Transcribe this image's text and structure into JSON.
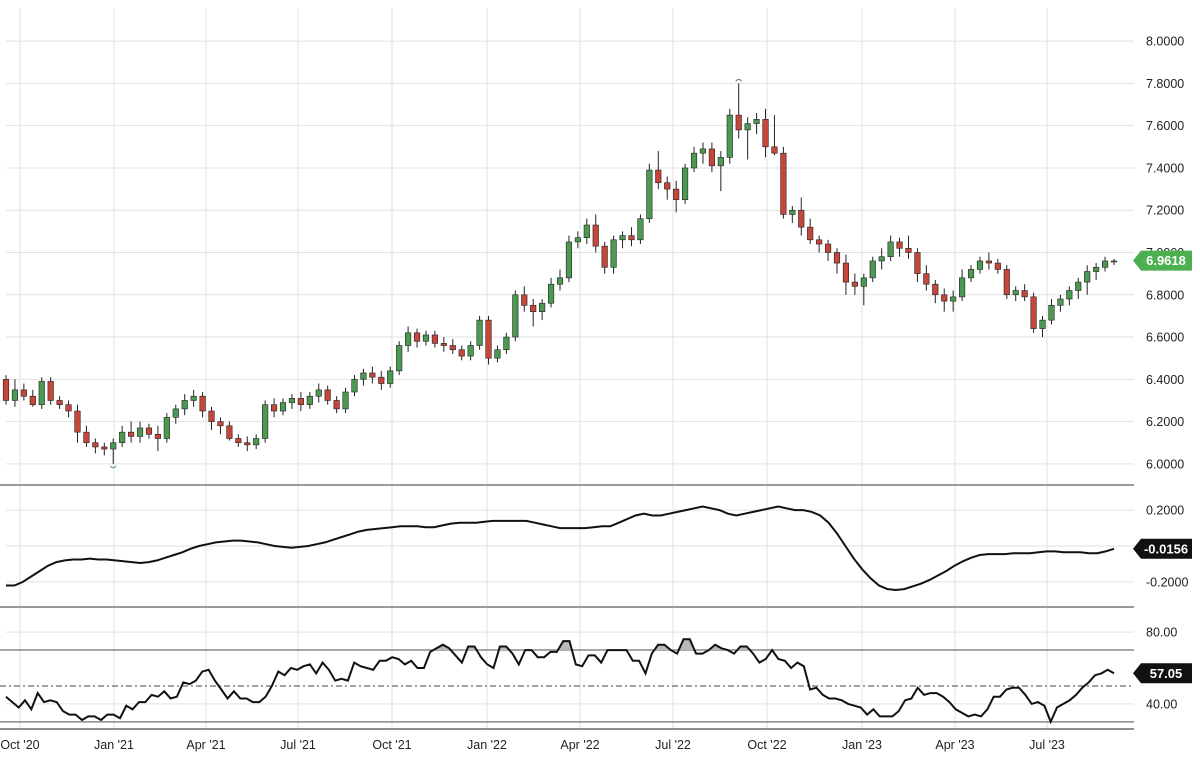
{
  "chart_data": [
    {
      "type": "candlestick",
      "panel": "price",
      "x_ticks": [
        "Oct '20",
        "Jan '21",
        "Apr '21",
        "Jul '21",
        "Oct '21",
        "Jan '22",
        "Apr '22",
        "Jul '22",
        "Oct '22",
        "Jan '23",
        "Apr '23",
        "Jul '23"
      ],
      "y_ticks": [
        "8.0000",
        "7.8000",
        "7.6000",
        "7.4000",
        "7.2000",
        "7.0000",
        "6.8000",
        "6.6000",
        "6.4000",
        "6.2000",
        "6.0000"
      ],
      "ylim": [
        5.9,
        8.1
      ],
      "last_value": "6.9618",
      "colors": {
        "up": "#4c9a52",
        "down": "#c7463a",
        "badge": "#4caf50"
      },
      "markers": {
        "high": "7.8",
        "low": "6.0"
      },
      "ohlc_weekly": [
        [
          6.4,
          6.42,
          6.28,
          6.3
        ],
        [
          6.3,
          6.4,
          6.27,
          6.35
        ],
        [
          6.35,
          6.38,
          6.3,
          6.32
        ],
        [
          6.32,
          6.35,
          6.27,
          6.28
        ],
        [
          6.28,
          6.41,
          6.26,
          6.39
        ],
        [
          6.39,
          6.41,
          6.28,
          6.3
        ],
        [
          6.3,
          6.32,
          6.26,
          6.28
        ],
        [
          6.28,
          6.3,
          6.22,
          6.25
        ],
        [
          6.25,
          6.28,
          6.1,
          6.15
        ],
        [
          6.15,
          6.18,
          6.08,
          6.1
        ],
        [
          6.1,
          6.12,
          6.05,
          6.08
        ],
        [
          6.08,
          6.1,
          6.04,
          6.07
        ],
        [
          6.07,
          6.12,
          6.0,
          6.1
        ],
        [
          6.1,
          6.18,
          6.08,
          6.15
        ],
        [
          6.15,
          6.2,
          6.1,
          6.13
        ],
        [
          6.13,
          6.2,
          6.1,
          6.17
        ],
        [
          6.17,
          6.19,
          6.12,
          6.14
        ],
        [
          6.14,
          6.18,
          6.06,
          6.12
        ],
        [
          6.12,
          6.24,
          6.1,
          6.22
        ],
        [
          6.22,
          6.28,
          6.19,
          6.26
        ],
        [
          6.26,
          6.33,
          6.23,
          6.3
        ],
        [
          6.3,
          6.35,
          6.27,
          6.32
        ],
        [
          6.32,
          6.34,
          6.22,
          6.25
        ],
        [
          6.25,
          6.27,
          6.16,
          6.2
        ],
        [
          6.2,
          6.22,
          6.14,
          6.18
        ],
        [
          6.18,
          6.2,
          6.11,
          6.12
        ],
        [
          6.12,
          6.14,
          6.08,
          6.1
        ],
        [
          6.1,
          6.13,
          6.06,
          6.09
        ],
        [
          6.09,
          6.14,
          6.07,
          6.12
        ],
        [
          6.12,
          6.3,
          6.1,
          6.28
        ],
        [
          6.28,
          6.31,
          6.22,
          6.25
        ],
        [
          6.25,
          6.31,
          6.23,
          6.29
        ],
        [
          6.29,
          6.33,
          6.26,
          6.31
        ],
        [
          6.31,
          6.34,
          6.25,
          6.28
        ],
        [
          6.28,
          6.34,
          6.26,
          6.32
        ],
        [
          6.32,
          6.38,
          6.29,
          6.35
        ],
        [
          6.35,
          6.37,
          6.28,
          6.3
        ],
        [
          6.3,
          6.32,
          6.24,
          6.26
        ],
        [
          6.26,
          6.36,
          6.24,
          6.34
        ],
        [
          6.34,
          6.42,
          6.32,
          6.4
        ],
        [
          6.4,
          6.45,
          6.37,
          6.43
        ],
        [
          6.43,
          6.46,
          6.38,
          6.41
        ],
        [
          6.41,
          6.44,
          6.35,
          6.38
        ],
        [
          6.38,
          6.46,
          6.36,
          6.44
        ],
        [
          6.44,
          6.58,
          6.42,
          6.56
        ],
        [
          6.56,
          6.65,
          6.53,
          6.62
        ],
        [
          6.62,
          6.64,
          6.55,
          6.58
        ],
        [
          6.58,
          6.63,
          6.56,
          6.61
        ],
        [
          6.61,
          6.63,
          6.55,
          6.57
        ],
        [
          6.57,
          6.6,
          6.53,
          6.56
        ],
        [
          6.56,
          6.59,
          6.52,
          6.54
        ],
        [
          6.54,
          6.56,
          6.49,
          6.51
        ],
        [
          6.51,
          6.58,
          6.49,
          6.56
        ],
        [
          6.56,
          6.7,
          6.54,
          6.68
        ],
        [
          6.68,
          6.7,
          6.47,
          6.5
        ],
        [
          6.5,
          6.56,
          6.48,
          6.54
        ],
        [
          6.54,
          6.62,
          6.52,
          6.6
        ],
        [
          6.6,
          6.82,
          6.58,
          6.8
        ],
        [
          6.8,
          6.84,
          6.72,
          6.75
        ],
        [
          6.75,
          6.78,
          6.65,
          6.72
        ],
        [
          6.72,
          6.78,
          6.68,
          6.76
        ],
        [
          6.76,
          6.88,
          6.74,
          6.85
        ],
        [
          6.85,
          6.92,
          6.82,
          6.88
        ],
        [
          6.88,
          7.08,
          6.86,
          7.05
        ],
        [
          7.05,
          7.1,
          7.02,
          7.07
        ],
        [
          7.07,
          7.16,
          7.04,
          7.13
        ],
        [
          7.13,
          7.18,
          7.0,
          7.03
        ],
        [
          7.03,
          7.05,
          6.9,
          6.93
        ],
        [
          6.93,
          7.08,
          6.9,
          7.06
        ],
        [
          7.06,
          7.1,
          7.02,
          7.08
        ],
        [
          7.08,
          7.12,
          7.03,
          7.06
        ],
        [
          7.06,
          7.18,
          7.04,
          7.16
        ],
        [
          7.16,
          7.42,
          7.14,
          7.39
        ],
        [
          7.39,
          7.48,
          7.3,
          7.33
        ],
        [
          7.33,
          7.36,
          7.25,
          7.3
        ],
        [
          7.3,
          7.34,
          7.19,
          7.25
        ],
        [
          7.25,
          7.42,
          7.23,
          7.4
        ],
        [
          7.4,
          7.5,
          7.38,
          7.47
        ],
        [
          7.47,
          7.52,
          7.42,
          7.49
        ],
        [
          7.49,
          7.52,
          7.38,
          7.41
        ],
        [
          7.41,
          7.48,
          7.29,
          7.45
        ],
        [
          7.45,
          7.68,
          7.42,
          7.65
        ],
        [
          7.65,
          7.8,
          7.54,
          7.58
        ],
        [
          7.58,
          7.64,
          7.44,
          7.61
        ],
        [
          7.61,
          7.66,
          7.56,
          7.63
        ],
        [
          7.63,
          7.68,
          7.45,
          7.5
        ],
        [
          7.5,
          7.65,
          7.46,
          7.47
        ],
        [
          7.47,
          7.5,
          7.16,
          7.18
        ],
        [
          7.18,
          7.22,
          7.14,
          7.2
        ],
        [
          7.2,
          7.26,
          7.08,
          7.12
        ],
        [
          7.12,
          7.16,
          7.04,
          7.06
        ],
        [
          7.06,
          7.08,
          7.0,
          7.04
        ],
        [
          7.04,
          7.06,
          6.96,
          7.0
        ],
        [
          7.0,
          7.02,
          6.9,
          6.95
        ],
        [
          6.95,
          6.99,
          6.8,
          6.86
        ],
        [
          6.86,
          6.9,
          6.8,
          6.84
        ],
        [
          6.84,
          6.9,
          6.75,
          6.88
        ],
        [
          6.88,
          6.98,
          6.86,
          6.96
        ],
        [
          6.96,
          7.02,
          6.92,
          6.98
        ],
        [
          6.98,
          7.08,
          6.96,
          7.05
        ],
        [
          7.05,
          7.07,
          6.98,
          7.02
        ],
        [
          7.02,
          7.08,
          6.97,
          7.0
        ],
        [
          7.0,
          7.02,
          6.86,
          6.9
        ],
        [
          6.9,
          6.94,
          6.82,
          6.85
        ],
        [
          6.85,
          6.87,
          6.76,
          6.8
        ],
        [
          6.8,
          6.83,
          6.72,
          6.77
        ],
        [
          6.77,
          6.82,
          6.72,
          6.79
        ],
        [
          6.79,
          6.92,
          6.77,
          6.88
        ],
        [
          6.88,
          6.94,
          6.86,
          6.92
        ],
        [
          6.92,
          6.98,
          6.9,
          6.96
        ],
        [
          6.96,
          7.0,
          6.92,
          6.95
        ],
        [
          6.95,
          6.97,
          6.9,
          6.92
        ],
        [
          6.92,
          6.94,
          6.78,
          6.8
        ],
        [
          6.8,
          6.84,
          6.77,
          6.82
        ],
        [
          6.82,
          6.85,
          6.77,
          6.79
        ],
        [
          6.79,
          6.81,
          6.62,
          6.64
        ],
        [
          6.64,
          6.7,
          6.6,
          6.68
        ],
        [
          6.68,
          6.78,
          6.66,
          6.75
        ],
        [
          6.75,
          6.8,
          6.72,
          6.78
        ],
        [
          6.78,
          6.84,
          6.75,
          6.82
        ],
        [
          6.82,
          6.88,
          6.78,
          6.86
        ],
        [
          6.86,
          6.94,
          6.8,
          6.91
        ],
        [
          6.91,
          6.95,
          6.87,
          6.93
        ],
        [
          6.93,
          6.98,
          6.91,
          6.96
        ],
        [
          6.96,
          6.97,
          6.94,
          6.96
        ]
      ]
    },
    {
      "type": "line",
      "panel": "oscillator",
      "y_ticks": [
        "0.2000",
        "-0.2000"
      ],
      "ylim": [
        -0.34,
        0.34
      ],
      "last_value": "-0.0156",
      "values": [
        -0.22,
        -0.22,
        -0.2,
        -0.17,
        -0.14,
        -0.11,
        -0.09,
        -0.08,
        -0.075,
        -0.075,
        -0.07,
        -0.075,
        -0.075,
        -0.08,
        -0.085,
        -0.09,
        -0.095,
        -0.09,
        -0.08,
        -0.065,
        -0.05,
        -0.035,
        -0.015,
        0,
        0.01,
        0.02,
        0.025,
        0.03,
        0.03,
        0.025,
        0.02,
        0.01,
        0,
        -0.005,
        -0.01,
        -0.005,
        0,
        0.01,
        0.02,
        0.035,
        0.05,
        0.065,
        0.08,
        0.09,
        0.095,
        0.1,
        0.105,
        0.11,
        0.11,
        0.11,
        0.105,
        0.105,
        0.115,
        0.125,
        0.13,
        0.13,
        0.13,
        0.135,
        0.14,
        0.14,
        0.14,
        0.14,
        0.14,
        0.13,
        0.12,
        0.11,
        0.1,
        0.1,
        0.1,
        0.1,
        0.105,
        0.11,
        0.11,
        0.13,
        0.15,
        0.17,
        0.18,
        0.17,
        0.17,
        0.18,
        0.19,
        0.2,
        0.21,
        0.22,
        0.21,
        0.2,
        0.18,
        0.17,
        0.18,
        0.19,
        0.2,
        0.21,
        0.22,
        0.21,
        0.2,
        0.2,
        0.19,
        0.17,
        0.13,
        0.07,
        0.0,
        -0.07,
        -0.13,
        -0.18,
        -0.22,
        -0.24,
        -0.245,
        -0.24,
        -0.225,
        -0.21,
        -0.19,
        -0.165,
        -0.14,
        -0.11,
        -0.085,
        -0.065,
        -0.05,
        -0.045,
        -0.045,
        -0.045,
        -0.04,
        -0.04,
        -0.04,
        -0.035,
        -0.03,
        -0.03,
        -0.035,
        -0.035,
        -0.035,
        -0.04,
        -0.04,
        -0.03,
        -0.0156
      ]
    },
    {
      "type": "line",
      "panel": "rsi",
      "y_ticks": [
        "80.00",
        "40.00"
      ],
      "ylim": [
        26,
        94
      ],
      "upper_band": 70,
      "mid_band": 50,
      "lower_band": 30,
      "last_value": "57.05",
      "values": [
        44,
        41,
        38,
        42,
        37,
        46,
        41,
        42,
        41,
        36,
        34,
        34,
        31,
        33,
        33,
        31,
        34,
        34,
        32,
        39,
        37,
        41,
        41,
        45,
        44,
        47,
        43,
        44,
        52,
        51,
        53,
        58,
        59,
        53,
        48,
        43,
        47,
        43,
        43,
        41,
        41,
        44,
        50,
        58,
        56,
        60,
        59,
        61,
        62,
        57,
        63,
        59,
        53,
        54,
        53,
        63,
        61,
        60,
        59,
        64,
        64,
        66,
        65,
        62,
        64,
        60,
        60,
        69,
        71,
        73,
        71,
        67,
        63,
        72,
        72,
        66,
        62,
        60,
        72,
        72,
        68,
        62,
        70,
        70,
        66,
        66,
        69,
        69,
        75,
        75,
        62,
        61,
        67,
        67,
        63,
        70,
        70,
        70,
        70,
        64,
        64,
        57,
        68,
        73,
        73,
        70,
        68,
        76,
        76,
        68,
        68,
        70,
        73,
        71,
        70,
        68,
        72,
        72,
        68,
        63,
        65,
        70,
        65,
        64,
        60,
        63,
        61,
        48,
        49,
        45,
        43,
        43,
        42,
        40,
        39,
        38,
        34,
        37,
        33,
        33,
        33,
        36,
        42,
        43,
        49,
        45,
        46,
        46,
        44,
        41,
        37,
        35,
        33,
        34,
        33,
        37,
        44,
        44,
        48,
        49,
        49,
        45,
        40,
        41,
        39,
        30,
        38,
        40,
        42,
        45,
        49,
        52,
        56,
        57,
        59,
        57.05
      ]
    }
  ]
}
